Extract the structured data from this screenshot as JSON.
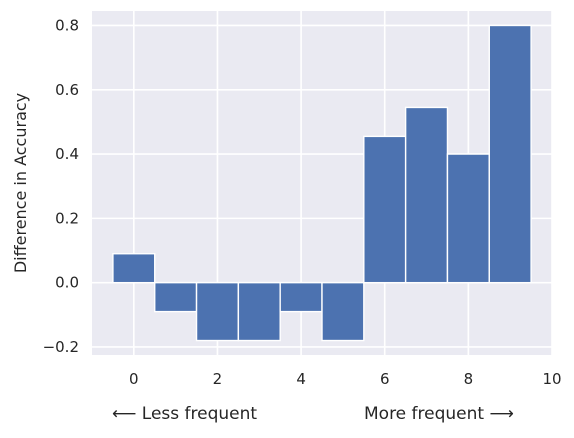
{
  "chart_data": {
    "type": "bar",
    "x": [
      0,
      1,
      2,
      3,
      4,
      5,
      6,
      7,
      8,
      9
    ],
    "values": [
      0.09,
      -0.09,
      -0.18,
      -0.18,
      -0.09,
      -0.18,
      0.455,
      0.545,
      0.4,
      0.8
    ],
    "bar_width": 1,
    "color": "#4c72b0",
    "background": "#eaeaf2",
    "grid": true,
    "title": "",
    "xlabel": "",
    "ylabel": "Difference in Accuracy",
    "xlim": [
      -1,
      10
    ],
    "ylim": [
      -0.225,
      0.845
    ],
    "xticks": [
      0,
      2,
      4,
      6,
      8,
      10
    ],
    "yticks": [
      -0.2,
      0.0,
      0.2,
      0.4,
      0.6,
      0.8
    ],
    "ytick_labels": [
      "−0.2",
      "0.0",
      "0.2",
      "0.4",
      "0.6",
      "0.8"
    ]
  },
  "annotations": {
    "left": "⟵ Less frequent",
    "right": "More frequent ⟶"
  }
}
